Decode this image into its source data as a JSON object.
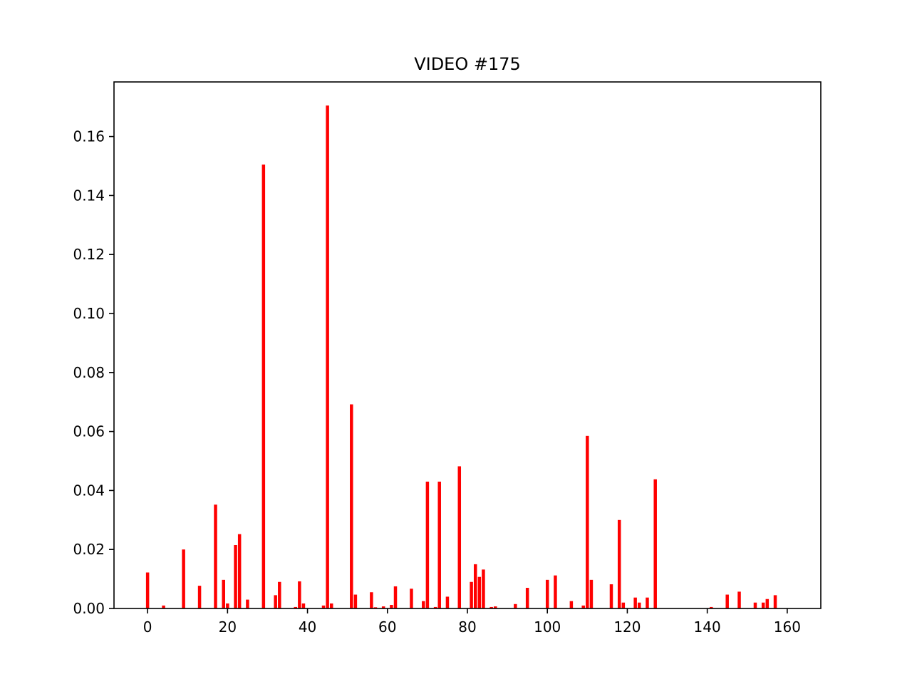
{
  "chart_data": {
    "type": "bar",
    "title": "VIDEO #175",
    "xlabel": "",
    "ylabel": "",
    "xlim": [
      -8.4,
      168.4
    ],
    "ylim": [
      0,
      0.1785
    ],
    "x_ticks": [
      0,
      20,
      40,
      60,
      80,
      100,
      120,
      140,
      160
    ],
    "x_tick_labels": [
      "0",
      "20",
      "40",
      "60",
      "80",
      "100",
      "120",
      "140",
      "160"
    ],
    "y_ticks": [
      0.0,
      0.02,
      0.04,
      0.06,
      0.08,
      0.1,
      0.12,
      0.14,
      0.16
    ],
    "y_tick_labels": [
      "0.00",
      "0.02",
      "0.04",
      "0.06",
      "0.08",
      "0.10",
      "0.12",
      "0.14",
      "0.16"
    ],
    "grid": false,
    "bar_color": "#ff0000",
    "points": [
      [
        0,
        0.0122
      ],
      [
        4,
        0.001
      ],
      [
        9,
        0.02
      ],
      [
        13,
        0.0077
      ],
      [
        17,
        0.0352
      ],
      [
        19,
        0.0097
      ],
      [
        20,
        0.0017
      ],
      [
        22,
        0.0215
      ],
      [
        23,
        0.0252
      ],
      [
        25,
        0.003
      ],
      [
        29,
        0.1505
      ],
      [
        32,
        0.0045
      ],
      [
        33,
        0.009
      ],
      [
        37,
        0.0005
      ],
      [
        38,
        0.0092
      ],
      [
        39,
        0.0017
      ],
      [
        44,
        0.001
      ],
      [
        45,
        0.1705
      ],
      [
        46,
        0.0017
      ],
      [
        51,
        0.0692
      ],
      [
        52,
        0.0047
      ],
      [
        56,
        0.0055
      ],
      [
        57,
        0.0004
      ],
      [
        59,
        0.0007
      ],
      [
        61,
        0.0012
      ],
      [
        62,
        0.0075
      ],
      [
        66,
        0.0067
      ],
      [
        69,
        0.0025
      ],
      [
        70,
        0.043
      ],
      [
        72,
        0.0005
      ],
      [
        73,
        0.043
      ],
      [
        75,
        0.004
      ],
      [
        78,
        0.0482
      ],
      [
        81,
        0.009
      ],
      [
        82,
        0.015
      ],
      [
        83,
        0.0107
      ],
      [
        84,
        0.0132
      ],
      [
        86,
        0.0005
      ],
      [
        87,
        0.0007
      ],
      [
        92,
        0.0015
      ],
      [
        95,
        0.007
      ],
      [
        100,
        0.0097
      ],
      [
        102,
        0.0112
      ],
      [
        106,
        0.0025
      ],
      [
        109,
        0.001
      ],
      [
        110,
        0.0585
      ],
      [
        111,
        0.0097
      ],
      [
        116,
        0.0082
      ],
      [
        118,
        0.03
      ],
      [
        119,
        0.002
      ],
      [
        122,
        0.0037
      ],
      [
        123,
        0.002
      ],
      [
        125,
        0.0037
      ],
      [
        127,
        0.0438
      ],
      [
        141,
        0.0005
      ],
      [
        145,
        0.0047
      ],
      [
        148,
        0.0057
      ],
      [
        152,
        0.002
      ],
      [
        154,
        0.002
      ],
      [
        155,
        0.0032
      ],
      [
        157,
        0.0045
      ]
    ]
  }
}
